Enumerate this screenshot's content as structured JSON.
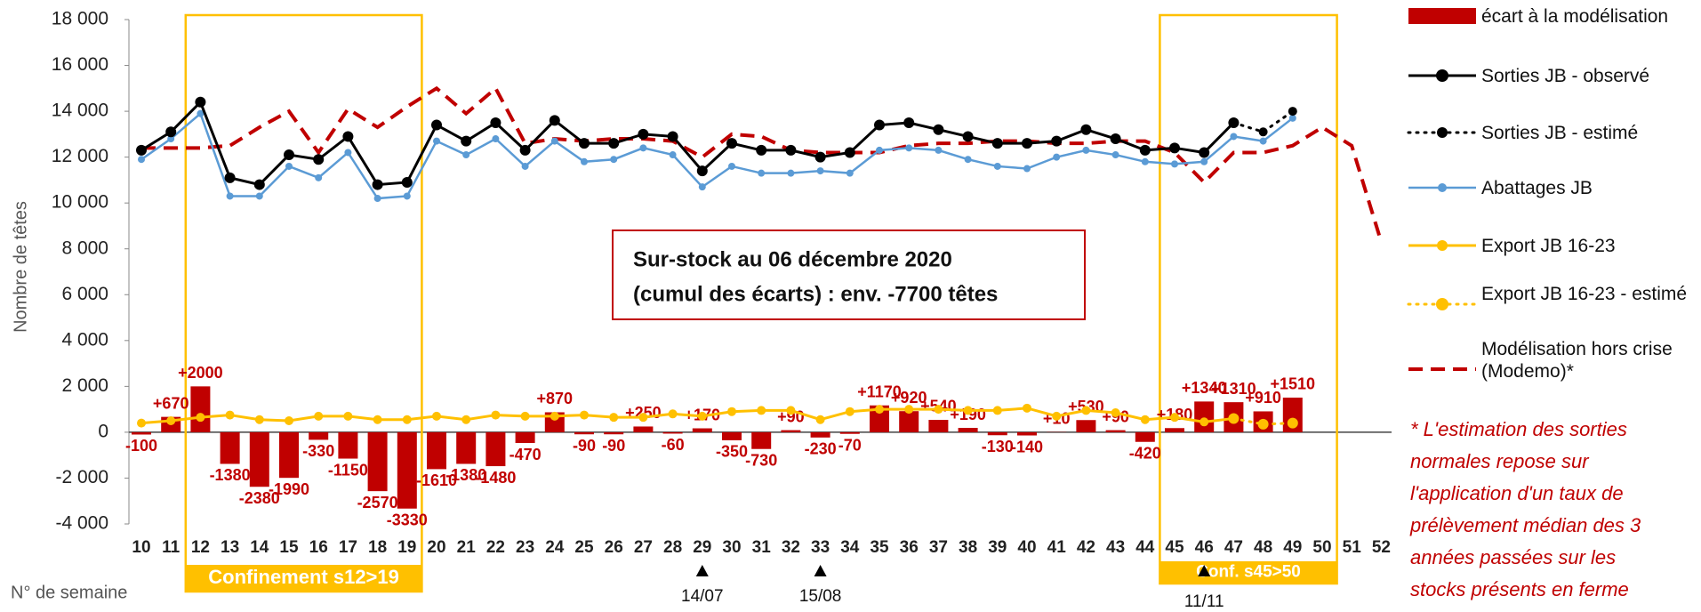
{
  "chart_data": {
    "type": "combo",
    "y_label": "Nombre de têtes",
    "x_label": "N° de semaine",
    "categories": [
      "10",
      "11",
      "12",
      "13",
      "14",
      "15",
      "16",
      "17",
      "18",
      "19",
      "20",
      "21",
      "22",
      "23",
      "24",
      "25",
      "26",
      "27",
      "28",
      "29",
      "30",
      "31",
      "32",
      "33",
      "34",
      "35",
      "36",
      "37",
      "38",
      "39",
      "40",
      "41",
      "42",
      "43",
      "44",
      "45",
      "46",
      "47",
      "48",
      "49",
      "50",
      "51",
      "52"
    ],
    "ylim": [
      -4000,
      18000
    ],
    "yticks": [
      {
        "value": -4000,
        "label": "-4 000"
      },
      {
        "value": -2000,
        "label": "-2 000"
      },
      0,
      {
        "value": 2000,
        "label": "2 000"
      },
      {
        "value": 4000,
        "label": "4 000"
      },
      {
        "value": 6000,
        "label": "6 000"
      },
      {
        "value": 8000,
        "label": "8 000"
      },
      {
        "value": 10000,
        "label": "10 000"
      },
      {
        "value": 12000,
        "label": "12 000"
      },
      {
        "value": 14000,
        "label": "14 000"
      },
      {
        "value": 16000,
        "label": "16 000"
      },
      {
        "value": 18000,
        "label": "18 000"
      }
    ],
    "grid": false,
    "series": [
      {
        "name": "écart à la modélisation",
        "type": "bar",
        "color": "#c00000",
        "values": [
          -100,
          670,
          2000,
          -1380,
          -2380,
          -1990,
          -330,
          -1150,
          -2570,
          -3330,
          -1610,
          -1380,
          -1480,
          -470,
          870,
          -90,
          -90,
          250,
          -60,
          170,
          -350,
          -730,
          90,
          -230,
          -70,
          1170,
          920,
          540,
          190,
          -130,
          -140,
          10,
          530,
          90,
          -420,
          180,
          1340,
          1310,
          910,
          1510,
          null,
          null,
          null
        ],
        "value_labels": [
          "-100",
          "+670",
          "+2000",
          "-1380",
          "-2380",
          "-1990",
          "-330",
          "-1150",
          "-2570",
          "-3330",
          "-1610",
          "-1380",
          "-1480",
          "-470",
          "+870",
          "-90",
          "-90",
          "+250",
          "-60",
          "+170",
          "-350",
          "-730",
          "+90",
          "-230",
          "-70",
          "+1170",
          "+920",
          "+540",
          "+190",
          "-130",
          "-140",
          "+10",
          "+530",
          "+90",
          "-420",
          "+180",
          "+1340",
          "+1310",
          "+910",
          "+1510",
          null,
          null,
          null
        ]
      },
      {
        "name": "Sorties JB - observé",
        "type": "line",
        "color": "#000000",
        "width": 3,
        "marker": 6,
        "dash": "solid",
        "values": [
          12300,
          13100,
          14400,
          11100,
          10800,
          12100,
          11900,
          12900,
          10800,
          10900,
          13400,
          12700,
          13500,
          12300,
          13600,
          12600,
          12600,
          13000,
          12900,
          11400,
          12600,
          12300,
          12300,
          12000,
          12200,
          13400,
          13500,
          13200,
          12900,
          12600,
          12600,
          12700,
          13200,
          12800,
          12300,
          12400,
          12200,
          13500,
          null,
          null,
          null,
          null,
          null
        ]
      },
      {
        "name": "Sorties JB - estimé",
        "type": "line",
        "color": "#000000",
        "width": 3,
        "marker": 5,
        "dash": "dotted",
        "values": [
          null,
          null,
          null,
          null,
          null,
          null,
          null,
          null,
          null,
          null,
          null,
          null,
          null,
          null,
          null,
          null,
          null,
          null,
          null,
          null,
          null,
          null,
          null,
          null,
          null,
          null,
          null,
          null,
          null,
          null,
          null,
          null,
          null,
          null,
          null,
          null,
          null,
          13500,
          13100,
          14000,
          null,
          null,
          null
        ]
      },
      {
        "name": "Abattages JB",
        "type": "line",
        "color": "#5b9bd5",
        "width": 2.5,
        "marker": 4,
        "dash": "solid",
        "values": [
          11900,
          12800,
          13900,
          10300,
          10300,
          11600,
          11100,
          12200,
          10200,
          10300,
          12700,
          12100,
          12800,
          11600,
          12700,
          11800,
          11900,
          12400,
          12100,
          10700,
          11600,
          11300,
          11300,
          11400,
          11300,
          12300,
          12400,
          12300,
          11900,
          11600,
          11500,
          12000,
          12300,
          12100,
          11800,
          11700,
          11800,
          12900,
          12700,
          13700,
          null,
          null,
          null
        ]
      },
      {
        "name": "Export JB 16-23",
        "type": "line",
        "color": "#ffc000",
        "width": 3,
        "marker": 5,
        "dash": "solid",
        "values": [
          400,
          500,
          650,
          750,
          550,
          500,
          700,
          700,
          550,
          550,
          700,
          550,
          750,
          700,
          700,
          750,
          650,
          650,
          800,
          700,
          900,
          950,
          950,
          550,
          900,
          1000,
          1000,
          1000,
          950,
          950,
          1050,
          700,
          950,
          850,
          550,
          650,
          450,
          600,
          null,
          null,
          null,
          null,
          null
        ]
      },
      {
        "name": "Export JB 16-23 - estimé",
        "type": "line",
        "color": "#ffc000",
        "width": 3,
        "marker": 6,
        "dash": "dotted",
        "values": [
          null,
          null,
          null,
          null,
          null,
          null,
          null,
          null,
          null,
          null,
          null,
          null,
          null,
          null,
          null,
          null,
          null,
          null,
          null,
          null,
          null,
          null,
          null,
          null,
          null,
          null,
          null,
          null,
          null,
          null,
          null,
          null,
          null,
          null,
          null,
          null,
          null,
          600,
          350,
          400,
          null,
          null,
          null
        ]
      },
      {
        "name": "Modélisation hors crise (Modemo)*",
        "type": "line",
        "color": "#c00000",
        "width": 4,
        "marker": 0,
        "dash": "dashed",
        "values": [
          12400,
          12400,
          12400,
          12500,
          13300,
          14000,
          12200,
          14100,
          13300,
          14200,
          15000,
          13900,
          15000,
          12600,
          12800,
          12700,
          12800,
          12800,
          12700,
          12000,
          13000,
          12900,
          12300,
          12200,
          12200,
          12200,
          12500,
          12600,
          12600,
          12700,
          12700,
          12600,
          12600,
          12700,
          12700,
          12200,
          10900,
          12200,
          12200,
          12500,
          13300,
          12500,
          8300
        ]
      }
    ],
    "annotations": {
      "box": [
        "Sur-stock au 06 décembre 2020",
        "(cumul des écarts) : env. -7700 têtes"
      ],
      "periods": [
        {
          "label": "Confinement s12>19",
          "from": "12",
          "to": "19"
        },
        {
          "label": "Conf. s45>50",
          "from": "45",
          "to": "50"
        }
      ],
      "events": [
        {
          "label": "14/07",
          "week": "29"
        },
        {
          "label": "15/08",
          "week": "33"
        },
        {
          "label": "11/11",
          "week": "46"
        }
      ],
      "footnote": [
        "* L'estimation des sorties",
        "normales repose sur",
        "l'application d'un taux de",
        "prélèvement médian des 3",
        "années passées sur les",
        "stocks présents en ferme"
      ]
    }
  }
}
